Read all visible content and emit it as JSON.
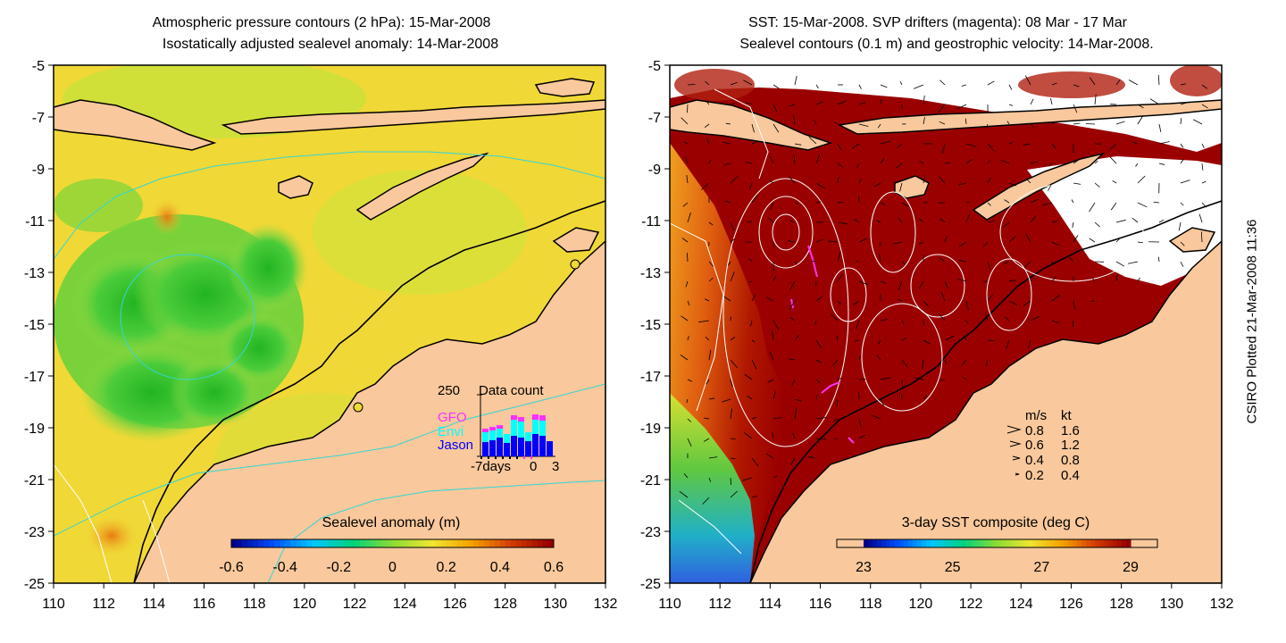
{
  "left_panel": {
    "title_line1": "Atmospheric pressure contours (2 hPa): 15-Mar-2008",
    "title_line2": "Isostatically adjusted sealevel anomaly: 14-Mar-2008",
    "colorbar_title": "Sealevel anomaly (m)",
    "colorbar_ticks": [
      "-0.6",
      "-0.4",
      "-0.2",
      "0",
      "0.2",
      "0.4",
      "0.6"
    ],
    "colorbar_colors": [
      "#00008c",
      "#0050ff",
      "#00c8ff",
      "#00d27a",
      "#8cdc32",
      "#f0e632",
      "#f5a000",
      "#d23c00",
      "#960000"
    ],
    "data_count": {
      "title": "Data count",
      "ymax_label": "250",
      "legend": [
        {
          "name": "GFO",
          "color": "#ff30ff"
        },
        {
          "name": "Envi",
          "color": "#00ffff"
        },
        {
          "name": "Jason",
          "color": "#0000ff"
        }
      ],
      "x_labels": [
        "-7days",
        "0",
        "3"
      ]
    }
  },
  "right_panel": {
    "title_line1": "SST: 15-Mar-2008. SVP drifters (magenta): 08 Mar - 17 Mar",
    "title_line2": "Sealevel contours (0.1 m) and geostrophic velocity: 14-Mar-2008.",
    "colorbar_title": "3-day SST composite (deg C)",
    "colorbar_ticks": [
      "23",
      "25",
      "27",
      "29"
    ],
    "colorbar_colors": [
      "#00008c",
      "#0050ff",
      "#00c8ff",
      "#00d27a",
      "#8cdc32",
      "#f0e632",
      "#f5a000",
      "#d23c00",
      "#960000"
    ],
    "velocity_legend": {
      "header_ms": "m/s",
      "header_kt": "kt",
      "rows": [
        {
          "ms": "0.8",
          "kt": "1.6"
        },
        {
          "ms": "0.6",
          "kt": "1.2"
        },
        {
          "ms": "0.4",
          "kt": "0.8"
        },
        {
          "ms": "0.2",
          "kt": "0.4"
        }
      ]
    }
  },
  "axes": {
    "lat_labels": [
      "-5",
      "-7",
      "-9",
      "-11",
      "-13",
      "-15",
      "-17",
      "-19",
      "-21",
      "-23",
      "-25"
    ],
    "lon_labels": [
      "110",
      "112",
      "114",
      "116",
      "118",
      "120",
      "122",
      "124",
      "126",
      "128",
      "130",
      "132"
    ]
  },
  "colors": {
    "land": "#f9c89c",
    "sst_warm": "#9a0000",
    "sla_base": "#f2d632",
    "sla_green": "#33c633",
    "contour_cyan": "#33d6d6"
  },
  "credit": "CSIRO Plotted 21-Mar-2008 11:36"
}
